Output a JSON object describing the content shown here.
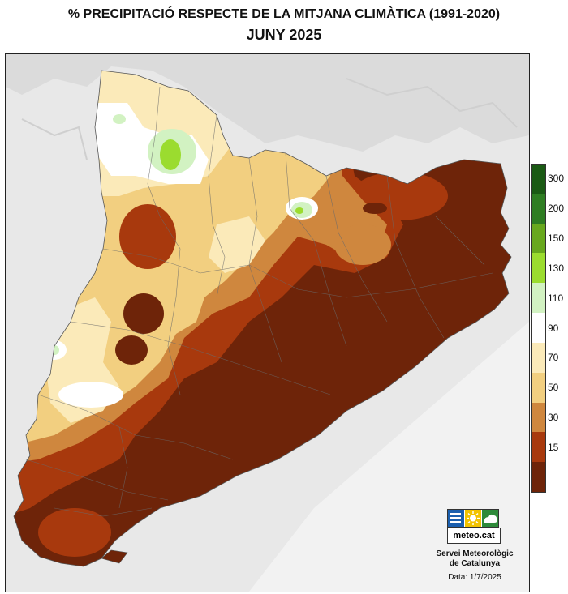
{
  "title": {
    "line1": "% PRECIPITACIÓ RESPECTE DE LA MITJANA CLIMÀTICA (1991-2020)",
    "line2": "JUNY 2025"
  },
  "legend": {
    "classes": [
      {
        "label": "300",
        "color": "#1a5a14"
      },
      {
        "label": "200",
        "color": "#2e7d22"
      },
      {
        "label": "150",
        "color": "#68a81e"
      },
      {
        "label": "130",
        "color": "#9bdc2f"
      },
      {
        "label": "110",
        "color": "#d2f2c2"
      },
      {
        "label": "90",
        "color": "#ffffff"
      },
      {
        "label": "70",
        "color": "#fbeab9"
      },
      {
        "label": "50",
        "color": "#f2cf80"
      },
      {
        "label": "30",
        "color": "#cf873e"
      },
      {
        "label": "15",
        "color": "#a8390d"
      },
      {
        "label": "",
        "color": "#6e2409"
      }
    ]
  },
  "colors": {
    "very_dry": "#6e2409",
    "dry": "#a8390d",
    "moderate_dry": "#cf873e",
    "slightly_dry": "#f2cf80",
    "near_normal_dry": "#fbeab9",
    "normal": "#ffffff",
    "wet": "#d2f2c2",
    "very_wet": "#9bdc2f",
    "terrain": "#e6e6e6",
    "sea": "#f2f2f2"
  },
  "logo": {
    "text": "meteo.cat"
  },
  "org": {
    "line1": "Servei Meteorològic",
    "line2": "de Catalunya"
  },
  "date": "Data: 1/7/2025"
}
